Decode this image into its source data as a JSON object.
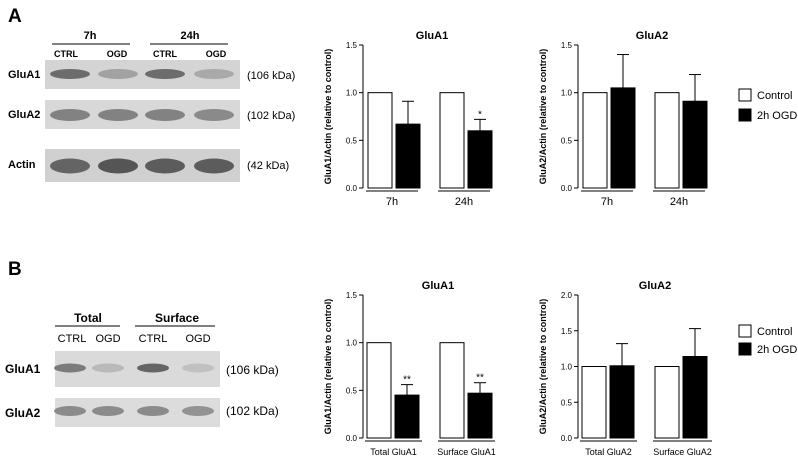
{
  "panels": {
    "a": {
      "letter": "A",
      "blot": {
        "time_groups": [
          "7h",
          "24h"
        ],
        "lane_labels": [
          "CTRL",
          "OGD",
          "CTRL",
          "OGD"
        ],
        "rows": [
          {
            "name": "GluA1",
            "mw": "(106 kDa)",
            "intensity": [
              0.7,
              0.35,
              0.7,
              0.3
            ]
          },
          {
            "name": "GluA2",
            "mw": "(102 kDa)",
            "intensity": [
              0.55,
              0.55,
              0.55,
              0.5
            ]
          },
          {
            "name": "Actin",
            "mw": "(42 kDa)",
            "intensity": [
              0.75,
              0.85,
              0.8,
              0.8
            ]
          }
        ]
      },
      "legend": {
        "control": "Control",
        "ogd": "2h OGD"
      }
    },
    "b": {
      "letter": "B",
      "blot": {
        "groups": [
          "Total",
          "Surface"
        ],
        "lane_labels": [
          "CTRL",
          "OGD",
          "CTRL",
          "OGD"
        ],
        "rows": [
          {
            "name": "GluA1",
            "mw": "(106 kDa)",
            "intensity": [
              0.6,
              0.2,
              0.75,
              0.15
            ]
          },
          {
            "name": "GluA2",
            "mw": "(102 kDa)",
            "intensity": [
              0.5,
              0.5,
              0.5,
              0.45
            ]
          }
        ]
      },
      "legend": {
        "control": "Control",
        "ogd": "2h OGD"
      }
    }
  },
  "chart_data": [
    {
      "type": "bar",
      "title": "GluA1",
      "ylabel": "GluA1/Actin (relative to control)",
      "xlabel": "",
      "categories": [
        "7h",
        "24h"
      ],
      "series": [
        {
          "name": "Control",
          "values": [
            1.0,
            1.0
          ],
          "errors": [
            0,
            0
          ]
        },
        {
          "name": "2h OGD",
          "values": [
            0.67,
            0.6
          ],
          "errors": [
            0.24,
            0.12
          ]
        }
      ],
      "significance": [
        "",
        "*"
      ],
      "ylim": [
        0,
        1.5
      ],
      "yticks": [
        "0.0",
        "0.5",
        "1.0",
        "1.5"
      ]
    },
    {
      "type": "bar",
      "title": "GluA2",
      "ylabel": "GluA2/Actin (relative to control)",
      "xlabel": "",
      "categories": [
        "7h",
        "24h"
      ],
      "series": [
        {
          "name": "Control",
          "values": [
            1.0,
            1.0
          ],
          "errors": [
            0,
            0
          ]
        },
        {
          "name": "2h OGD",
          "values": [
            1.05,
            0.91
          ],
          "errors": [
            0.35,
            0.28
          ]
        }
      ],
      "significance": [
        "",
        ""
      ],
      "ylim": [
        0,
        1.5
      ],
      "yticks": [
        "0.0",
        "0.5",
        "1.0",
        "1.5"
      ]
    },
    {
      "type": "bar",
      "title": "GluA1",
      "ylabel": "GluA1/Actin (relative to control)",
      "xlabel": "",
      "categories": [
        "Total GluA1",
        "Surface GluA1"
      ],
      "series": [
        {
          "name": "Control",
          "values": [
            1.0,
            1.0
          ],
          "errors": [
            0,
            0
          ]
        },
        {
          "name": "2h OGD",
          "values": [
            0.45,
            0.47
          ],
          "errors": [
            0.11,
            0.11
          ]
        }
      ],
      "significance": [
        "**",
        "**"
      ],
      "ylim": [
        0,
        1.5
      ],
      "yticks": [
        "0.0",
        "0.5",
        "1.0",
        "1.5"
      ]
    },
    {
      "type": "bar",
      "title": "GluA2",
      "ylabel": "GluA2/Actin (relative to control)",
      "xlabel": "",
      "categories": [
        "Total GluA2",
        "Surface GluA2"
      ],
      "series": [
        {
          "name": "Control",
          "values": [
            1.0,
            1.0
          ],
          "errors": [
            0,
            0
          ]
        },
        {
          "name": "2h OGD",
          "values": [
            1.01,
            1.14
          ],
          "errors": [
            0.31,
            0.39
          ]
        }
      ],
      "significance": [
        "",
        ""
      ],
      "ylim": [
        0,
        2.0
      ],
      "yticks": [
        "0.0",
        "0.5",
        "1.0",
        "1.5",
        "2.0"
      ]
    }
  ]
}
